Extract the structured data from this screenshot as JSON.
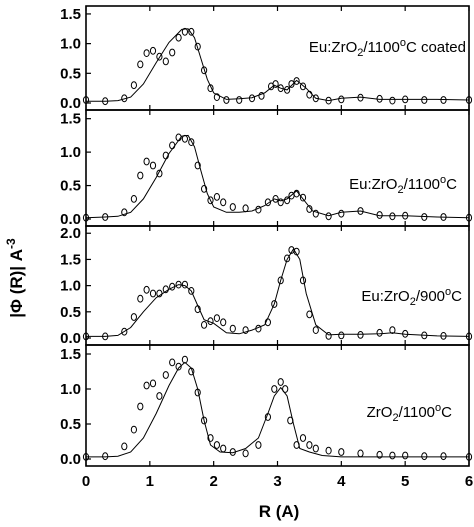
{
  "chart_data": {
    "type": "line",
    "xlabel": "R (A)",
    "ylabel": "|Φ (R)| A",
    "ylabel_superscript": "-3",
    "xlim": [
      0,
      6
    ],
    "xticks": [
      0,
      1,
      2,
      3,
      4,
      5,
      6
    ],
    "shared_x": true,
    "panels": [
      {
        "label": {
          "pre": "Eu:ZrO",
          "sub": "2",
          "mid": "/1100",
          "sup": "o",
          "post": "C coated"
        },
        "ylim": [
          0,
          1.6
        ],
        "yticks": [
          0.0,
          0.5,
          1.0,
          1.5
        ],
        "yticklabels": [
          "0.0",
          "0.5",
          "1.0",
          "1.5"
        ],
        "fit": [
          [
            0.0,
            0.03
          ],
          [
            0.3,
            0.03
          ],
          [
            0.5,
            0.04
          ],
          [
            0.7,
            0.1
          ],
          [
            0.9,
            0.32
          ],
          [
            1.1,
            0.68
          ],
          [
            1.3,
            1.02
          ],
          [
            1.5,
            1.24
          ],
          [
            1.6,
            1.25
          ],
          [
            1.7,
            1.1
          ],
          [
            1.8,
            0.75
          ],
          [
            1.9,
            0.4
          ],
          [
            2.0,
            0.17
          ],
          [
            2.2,
            0.06
          ],
          [
            2.4,
            0.07
          ],
          [
            2.6,
            0.09
          ],
          [
            2.8,
            0.17
          ],
          [
            2.95,
            0.3
          ],
          [
            3.05,
            0.25
          ],
          [
            3.15,
            0.22
          ],
          [
            3.3,
            0.38
          ],
          [
            3.45,
            0.25
          ],
          [
            3.6,
            0.08
          ],
          [
            3.8,
            0.04
          ],
          [
            4.0,
            0.08
          ],
          [
            4.3,
            0.1
          ],
          [
            4.6,
            0.06
          ],
          [
            5.0,
            0.06
          ],
          [
            5.5,
            0.06
          ],
          [
            6.0,
            0.05
          ]
        ],
        "points": [
          [
            0.0,
            0.05
          ],
          [
            0.3,
            0.03
          ],
          [
            0.6,
            0.08
          ],
          [
            0.75,
            0.3
          ],
          [
            0.85,
            0.65
          ],
          [
            0.95,
            0.84
          ],
          [
            1.05,
            0.88
          ],
          [
            1.15,
            0.78
          ],
          [
            1.25,
            0.7
          ],
          [
            1.35,
            0.85
          ],
          [
            1.45,
            1.1
          ],
          [
            1.55,
            1.2
          ],
          [
            1.65,
            1.2
          ],
          [
            1.75,
            0.95
          ],
          [
            1.85,
            0.55
          ],
          [
            1.95,
            0.25
          ],
          [
            2.05,
            0.1
          ],
          [
            2.2,
            0.05
          ],
          [
            2.4,
            0.05
          ],
          [
            2.6,
            0.08
          ],
          [
            2.75,
            0.12
          ],
          [
            2.9,
            0.28
          ],
          [
            2.97,
            0.32
          ],
          [
            3.05,
            0.25
          ],
          [
            3.15,
            0.22
          ],
          [
            3.22,
            0.32
          ],
          [
            3.3,
            0.37
          ],
          [
            3.4,
            0.28
          ],
          [
            3.5,
            0.14
          ],
          [
            3.6,
            0.08
          ],
          [
            3.8,
            0.04
          ],
          [
            4.0,
            0.06
          ],
          [
            4.3,
            0.09
          ],
          [
            4.6,
            0.07
          ],
          [
            4.8,
            0.04
          ],
          [
            5.0,
            0.06
          ],
          [
            5.3,
            0.05
          ],
          [
            5.6,
            0.05
          ],
          [
            6.0,
            0.05
          ]
        ]
      },
      {
        "label": {
          "pre": "Eu:ZrO",
          "sub": "2",
          "mid": "/1100",
          "sup": "o",
          "post": "C"
        },
        "ylim": [
          0,
          1.6
        ],
        "yticks": [
          0.0,
          0.5,
          1.0,
          1.5
        ],
        "yticklabels": [
          "0.0",
          "0.5",
          "1.0",
          "1.5"
        ],
        "fit": [
          [
            0.0,
            0.02
          ],
          [
            0.3,
            0.03
          ],
          [
            0.5,
            0.04
          ],
          [
            0.7,
            0.1
          ],
          [
            0.9,
            0.3
          ],
          [
            1.1,
            0.62
          ],
          [
            1.3,
            0.98
          ],
          [
            1.5,
            1.24
          ],
          [
            1.6,
            1.25
          ],
          [
            1.7,
            1.08
          ],
          [
            1.8,
            0.72
          ],
          [
            1.9,
            0.38
          ],
          [
            2.0,
            0.18
          ],
          [
            2.2,
            0.1
          ],
          [
            2.4,
            0.1
          ],
          [
            2.6,
            0.12
          ],
          [
            2.8,
            0.2
          ],
          [
            2.95,
            0.3
          ],
          [
            3.05,
            0.27
          ],
          [
            3.15,
            0.3
          ],
          [
            3.3,
            0.42
          ],
          [
            3.4,
            0.3
          ],
          [
            3.55,
            0.12
          ],
          [
            3.8,
            0.05
          ],
          [
            4.0,
            0.1
          ],
          [
            4.3,
            0.12
          ],
          [
            4.6,
            0.05
          ],
          [
            5.0,
            0.05
          ],
          [
            5.5,
            0.03
          ],
          [
            6.0,
            0.02
          ]
        ],
        "points": [
          [
            0.0,
            0.02
          ],
          [
            0.3,
            0.03
          ],
          [
            0.6,
            0.1
          ],
          [
            0.75,
            0.3
          ],
          [
            0.85,
            0.65
          ],
          [
            0.95,
            0.86
          ],
          [
            1.05,
            0.8
          ],
          [
            1.15,
            0.68
          ],
          [
            1.25,
            0.95
          ],
          [
            1.35,
            1.1
          ],
          [
            1.45,
            1.22
          ],
          [
            1.55,
            1.2
          ],
          [
            1.65,
            1.15
          ],
          [
            1.75,
            0.8
          ],
          [
            1.85,
            0.45
          ],
          [
            1.95,
            0.28
          ],
          [
            2.05,
            0.33
          ],
          [
            2.15,
            0.25
          ],
          [
            2.3,
            0.18
          ],
          [
            2.5,
            0.16
          ],
          [
            2.7,
            0.14
          ],
          [
            2.85,
            0.25
          ],
          [
            2.97,
            0.3
          ],
          [
            3.05,
            0.25
          ],
          [
            3.15,
            0.28
          ],
          [
            3.22,
            0.35
          ],
          [
            3.3,
            0.38
          ],
          [
            3.4,
            0.32
          ],
          [
            3.5,
            0.15
          ],
          [
            3.6,
            0.08
          ],
          [
            3.8,
            0.04
          ],
          [
            4.0,
            0.08
          ],
          [
            4.3,
            0.12
          ],
          [
            4.6,
            0.06
          ],
          [
            4.8,
            0.04
          ],
          [
            5.0,
            0.05
          ],
          [
            5.3,
            0.03
          ],
          [
            5.6,
            0.03
          ],
          [
            6.0,
            0.02
          ]
        ]
      },
      {
        "label": {
          "pre": "Eu:ZrO",
          "sub": "2",
          "mid": "/900",
          "sup": "o",
          "post": "C"
        },
        "ylim": [
          0,
          2.1
        ],
        "yticks": [
          0.0,
          0.5,
          1.0,
          1.5,
          2.0
        ],
        "yticklabels": [
          "0.0",
          "0.5",
          "1.0",
          "1.5",
          "2.0"
        ],
        "fit": [
          [
            0.0,
            0.03
          ],
          [
            0.3,
            0.03
          ],
          [
            0.5,
            0.05
          ],
          [
            0.7,
            0.2
          ],
          [
            0.9,
            0.5
          ],
          [
            1.1,
            0.77
          ],
          [
            1.3,
            0.93
          ],
          [
            1.45,
            1.02
          ],
          [
            1.55,
            1.0
          ],
          [
            1.65,
            0.9
          ],
          [
            1.75,
            0.62
          ],
          [
            1.85,
            0.35
          ],
          [
            2.0,
            0.28
          ],
          [
            2.2,
            0.1
          ],
          [
            2.4,
            0.08
          ],
          [
            2.6,
            0.15
          ],
          [
            2.8,
            0.25
          ],
          [
            2.95,
            0.65
          ],
          [
            3.05,
            1.1
          ],
          [
            3.15,
            1.5
          ],
          [
            3.25,
            1.7
          ],
          [
            3.35,
            1.5
          ],
          [
            3.45,
            0.85
          ],
          [
            3.6,
            0.25
          ],
          [
            3.8,
            0.06
          ],
          [
            4.0,
            0.07
          ],
          [
            4.3,
            0.07
          ],
          [
            4.6,
            0.08
          ],
          [
            4.8,
            0.1
          ],
          [
            5.0,
            0.07
          ],
          [
            5.5,
            0.04
          ],
          [
            6.0,
            0.03
          ]
        ],
        "points": [
          [
            0.0,
            0.03
          ],
          [
            0.3,
            0.03
          ],
          [
            0.6,
            0.12
          ],
          [
            0.75,
            0.4
          ],
          [
            0.85,
            0.75
          ],
          [
            0.95,
            0.92
          ],
          [
            1.05,
            0.85
          ],
          [
            1.15,
            0.85
          ],
          [
            1.25,
            0.93
          ],
          [
            1.35,
            0.98
          ],
          [
            1.45,
            1.02
          ],
          [
            1.55,
            1.02
          ],
          [
            1.65,
            0.9
          ],
          [
            1.75,
            0.55
          ],
          [
            1.85,
            0.25
          ],
          [
            1.95,
            0.32
          ],
          [
            2.05,
            0.38
          ],
          [
            2.15,
            0.3
          ],
          [
            2.3,
            0.18
          ],
          [
            2.5,
            0.15
          ],
          [
            2.7,
            0.18
          ],
          [
            2.85,
            0.3
          ],
          [
            2.95,
            0.65
          ],
          [
            3.05,
            1.1
          ],
          [
            3.15,
            1.52
          ],
          [
            3.22,
            1.68
          ],
          [
            3.3,
            1.65
          ],
          [
            3.4,
            1.1
          ],
          [
            3.5,
            0.45
          ],
          [
            3.6,
            0.15
          ],
          [
            3.8,
            0.04
          ],
          [
            4.0,
            0.05
          ],
          [
            4.3,
            0.06
          ],
          [
            4.6,
            0.1
          ],
          [
            4.8,
            0.15
          ],
          [
            5.0,
            0.08
          ],
          [
            5.3,
            0.05
          ],
          [
            5.6,
            0.04
          ],
          [
            6.0,
            0.03
          ]
        ]
      },
      {
        "label": {
          "pre": "ZrO",
          "sub": "2",
          "mid": "/1100",
          "sup": "o",
          "post": "C"
        },
        "ylim": [
          0,
          1.6
        ],
        "yticks": [
          0.0,
          0.5,
          1.0,
          1.5
        ],
        "yticklabels": [
          "0.0",
          "0.5",
          "1.0",
          "1.5"
        ],
        "fit": [
          [
            0.0,
            0.03
          ],
          [
            0.3,
            0.03
          ],
          [
            0.5,
            0.04
          ],
          [
            0.7,
            0.1
          ],
          [
            0.9,
            0.3
          ],
          [
            1.1,
            0.65
          ],
          [
            1.3,
            1.05
          ],
          [
            1.45,
            1.3
          ],
          [
            1.55,
            1.38
          ],
          [
            1.65,
            1.3
          ],
          [
            1.75,
            1.0
          ],
          [
            1.85,
            0.55
          ],
          [
            1.95,
            0.2
          ],
          [
            2.1,
            0.1
          ],
          [
            2.3,
            0.09
          ],
          [
            2.5,
            0.15
          ],
          [
            2.7,
            0.3
          ],
          [
            2.85,
            0.65
          ],
          [
            2.95,
            0.9
          ],
          [
            3.05,
            1.02
          ],
          [
            3.15,
            0.9
          ],
          [
            3.25,
            0.5
          ],
          [
            3.35,
            0.15
          ],
          [
            3.5,
            0.1
          ],
          [
            3.7,
            0.05
          ],
          [
            4.0,
            0.03
          ],
          [
            4.5,
            0.03
          ],
          [
            5.0,
            0.03
          ],
          [
            5.5,
            0.03
          ],
          [
            6.0,
            0.03
          ]
        ],
        "points": [
          [
            0.0,
            0.03
          ],
          [
            0.3,
            0.04
          ],
          [
            0.6,
            0.18
          ],
          [
            0.75,
            0.42
          ],
          [
            0.85,
            0.75
          ],
          [
            0.95,
            1.05
          ],
          [
            1.05,
            1.08
          ],
          [
            1.15,
            0.9
          ],
          [
            1.25,
            1.2
          ],
          [
            1.35,
            1.38
          ],
          [
            1.45,
            1.32
          ],
          [
            1.55,
            1.42
          ],
          [
            1.65,
            1.25
          ],
          [
            1.75,
            0.95
          ],
          [
            1.85,
            0.55
          ],
          [
            1.95,
            0.3
          ],
          [
            2.05,
            0.2
          ],
          [
            2.15,
            0.15
          ],
          [
            2.3,
            0.1
          ],
          [
            2.5,
            0.08
          ],
          [
            2.7,
            0.2
          ],
          [
            2.85,
            0.6
          ],
          [
            2.95,
            1.0
          ],
          [
            3.05,
            1.1
          ],
          [
            3.12,
            1.0
          ],
          [
            3.2,
            0.55
          ],
          [
            3.3,
            0.2
          ],
          [
            3.4,
            0.3
          ],
          [
            3.5,
            0.2
          ],
          [
            3.6,
            0.15
          ],
          [
            3.8,
            0.12
          ],
          [
            4.0,
            0.1
          ],
          [
            4.3,
            0.08
          ],
          [
            4.6,
            0.06
          ],
          [
            4.8,
            0.05
          ],
          [
            5.0,
            0.05
          ],
          [
            5.3,
            0.04
          ],
          [
            5.6,
            0.04
          ],
          [
            6.0,
            0.03
          ]
        ]
      }
    ]
  }
}
